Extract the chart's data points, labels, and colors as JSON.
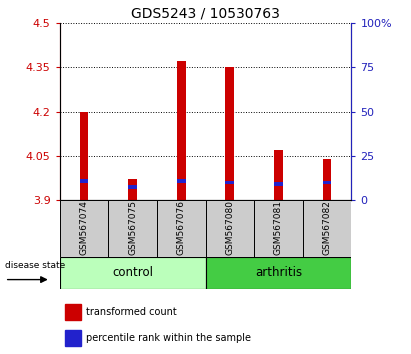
{
  "title": "GDS5243 / 10530763",
  "samples": [
    "GSM567074",
    "GSM567075",
    "GSM567076",
    "GSM567080",
    "GSM567081",
    "GSM567082"
  ],
  "red_values": [
    4.2,
    3.97,
    4.37,
    4.35,
    4.07,
    4.04
  ],
  "blue_values": [
    3.965,
    3.945,
    3.965,
    3.96,
    3.955,
    3.96
  ],
  "blue_heights": [
    0.012,
    0.012,
    0.012,
    0.012,
    0.012,
    0.012
  ],
  "bar_bottom": 3.9,
  "ylim_left": [
    3.9,
    4.5
  ],
  "ylim_right": [
    0,
    100
  ],
  "yticks_left": [
    3.9,
    4.05,
    4.2,
    4.35,
    4.5
  ],
  "ytick_labels_left": [
    "3.9",
    "4.05",
    "4.2",
    "4.35",
    "4.5"
  ],
  "yticks_right": [
    0,
    25,
    50,
    75,
    100
  ],
  "ytick_labels_right": [
    "0",
    "25",
    "50",
    "75",
    "100%"
  ],
  "red_color": "#cc0000",
  "blue_color": "#2222cc",
  "left_tick_color": "#cc0000",
  "right_tick_color": "#2222bb",
  "bar_width": 0.18,
  "group_control_color": "#bbffbb",
  "group_arthritis_color": "#44cc44",
  "sample_box_color": "#cccccc",
  "legend_red": "transformed count",
  "legend_blue": "percentile rank within the sample",
  "group_label_control": "control",
  "group_label_arthritis": "arthritis",
  "disease_state_label": "disease state"
}
